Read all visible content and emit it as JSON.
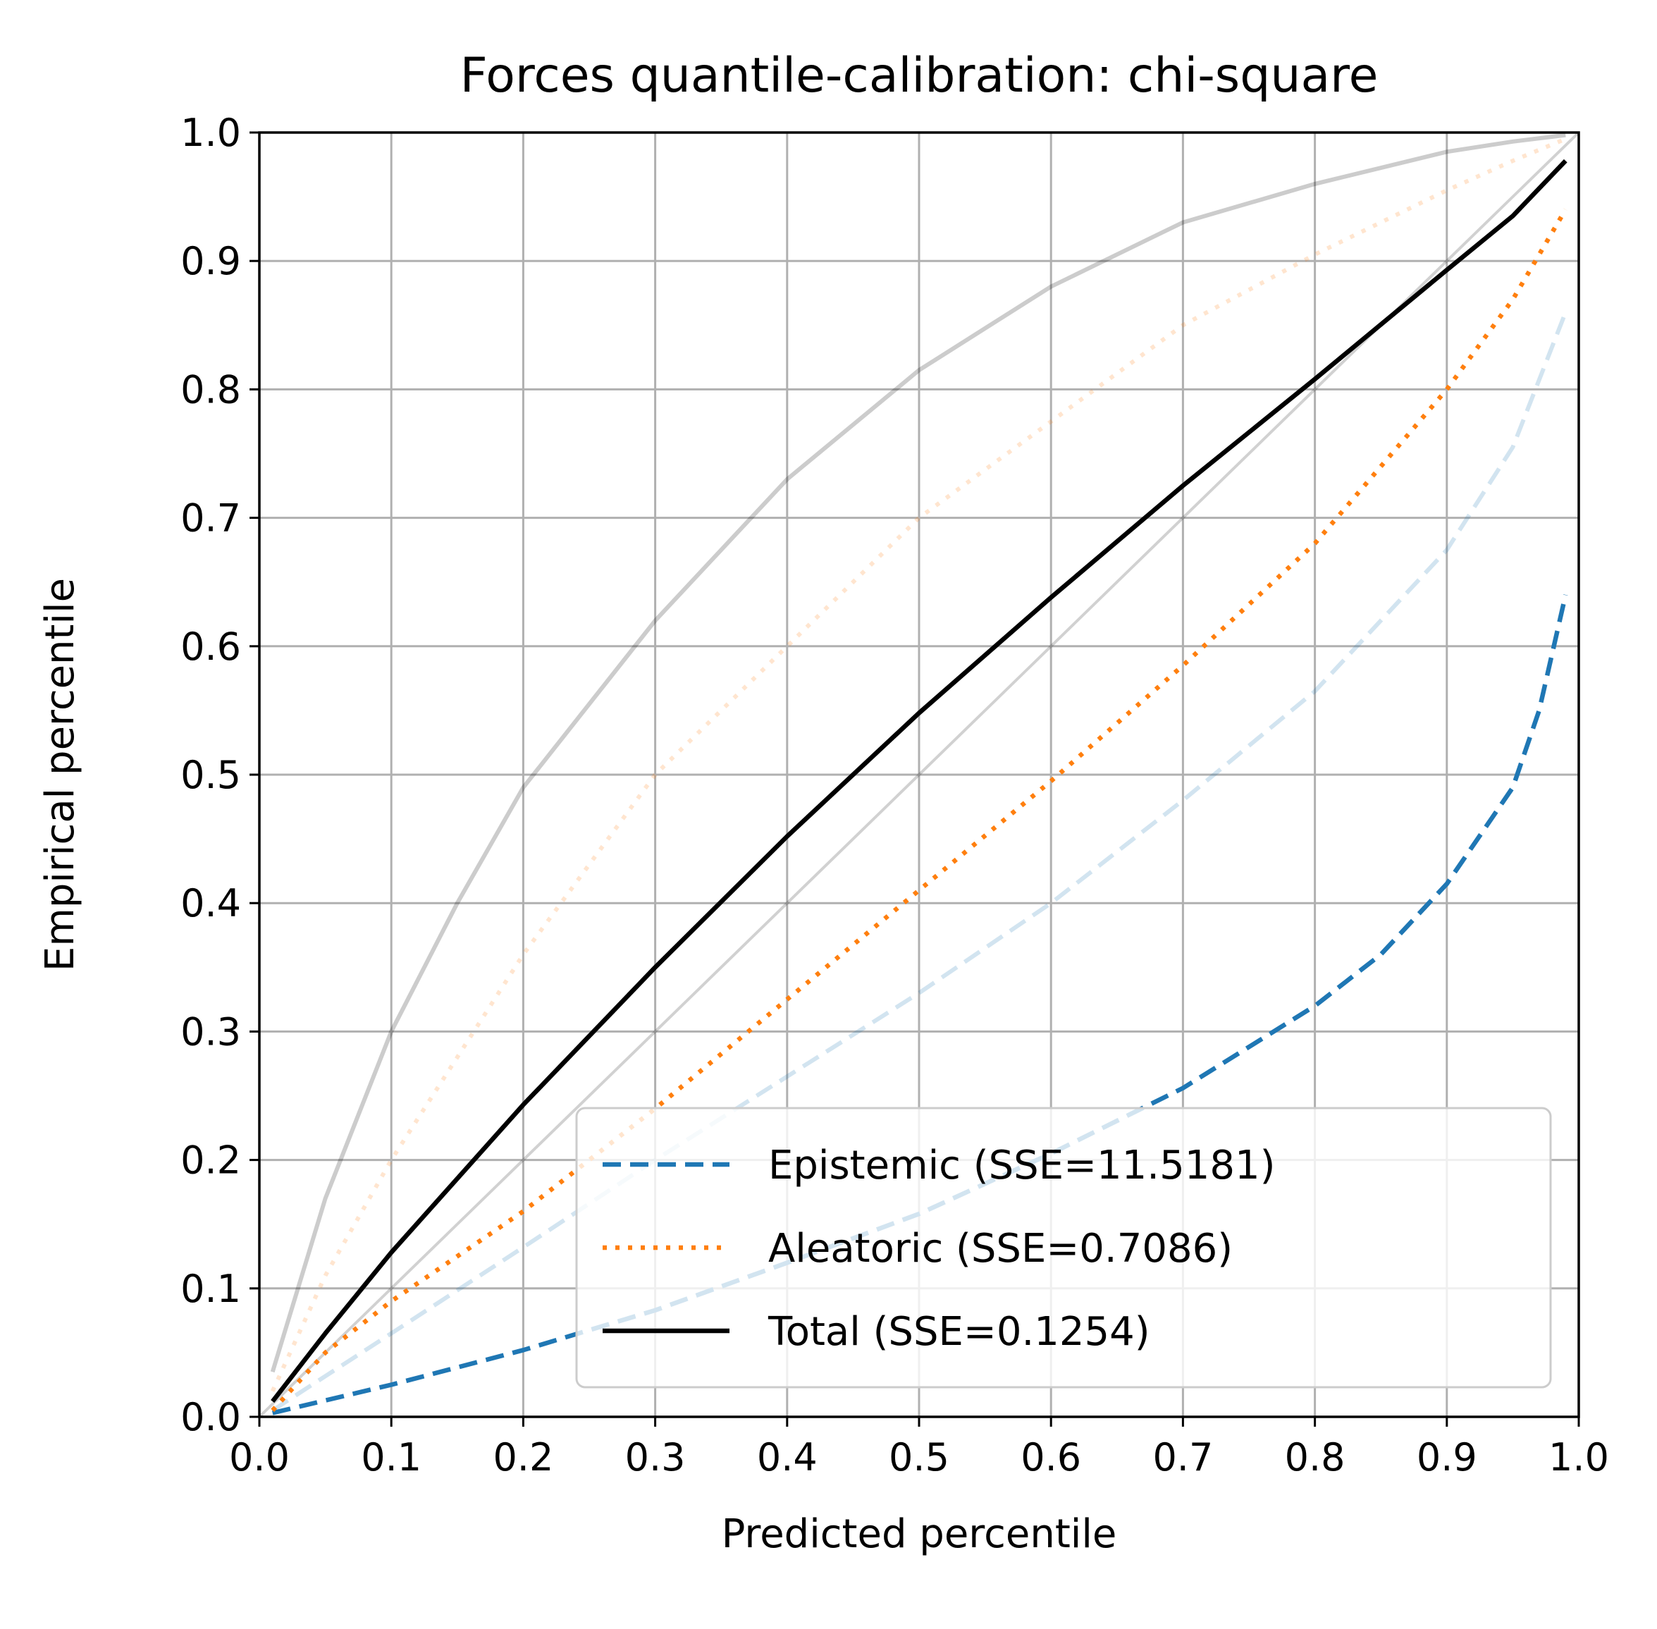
{
  "chart_data": {
    "type": "line",
    "title": "Forces quantile-calibration: chi-square",
    "xlabel": "Predicted percentile",
    "ylabel": "Empirical percentile",
    "xlim": [
      0,
      1
    ],
    "ylim": [
      0,
      1
    ],
    "xticks": [
      "0.0",
      "0.1",
      "0.2",
      "0.3",
      "0.4",
      "0.5",
      "0.6",
      "0.7",
      "0.8",
      "0.9",
      "1.0"
    ],
    "yticks": [
      "0.0",
      "0.1",
      "0.2",
      "0.3",
      "0.4",
      "0.5",
      "0.6",
      "0.7",
      "0.8",
      "0.9",
      "1.0"
    ],
    "grid": true,
    "legend_position": "lower-right",
    "series": [
      {
        "name": "Epistemic (SSE=11.5181)",
        "color": "#1f77b4",
        "style": "dashed",
        "x": [
          0.01,
          0.1,
          0.2,
          0.3,
          0.4,
          0.5,
          0.6,
          0.7,
          0.8,
          0.85,
          0.9,
          0.95,
          0.97,
          0.99
        ],
        "y": [
          0.003,
          0.025,
          0.052,
          0.083,
          0.12,
          0.158,
          0.205,
          0.256,
          0.32,
          0.36,
          0.415,
          0.49,
          0.55,
          0.64
        ]
      },
      {
        "name": "Aleatoric (SSE=0.7086)",
        "color": "#ff7f0e",
        "style": "dotted",
        "x": [
          0.01,
          0.05,
          0.1,
          0.2,
          0.3,
          0.4,
          0.5,
          0.6,
          0.7,
          0.8,
          0.9,
          0.95,
          0.99
        ],
        "y": [
          0.005,
          0.05,
          0.09,
          0.16,
          0.24,
          0.325,
          0.41,
          0.495,
          0.585,
          0.68,
          0.8,
          0.87,
          0.94
        ]
      },
      {
        "name": "Total (SSE=0.1254)",
        "color": "#000000",
        "style": "solid",
        "x": [
          0.01,
          0.05,
          0.1,
          0.2,
          0.3,
          0.4,
          0.5,
          0.6,
          0.7,
          0.8,
          0.9,
          0.95,
          0.99
        ],
        "y": [
          0.012,
          0.065,
          0.128,
          0.243,
          0.35,
          0.452,
          0.548,
          0.638,
          0.725,
          0.808,
          0.893,
          0.935,
          0.978
        ]
      }
    ],
    "reference_lines": [
      {
        "color": "#1f77b4",
        "style": "dashed",
        "opacity": 0.2,
        "x": [
          0.01,
          0.1,
          0.2,
          0.3,
          0.4,
          0.5,
          0.6,
          0.7,
          0.8,
          0.9,
          0.95,
          0.99
        ],
        "y": [
          0.005,
          0.065,
          0.132,
          0.2,
          0.265,
          0.33,
          0.4,
          0.48,
          0.565,
          0.675,
          0.755,
          0.86
        ]
      },
      {
        "color": "#ff7f0e",
        "style": "dotted",
        "opacity": 0.2,
        "x": [
          0.01,
          0.05,
          0.1,
          0.2,
          0.3,
          0.4,
          0.5,
          0.6,
          0.7,
          0.8,
          0.9,
          0.95,
          0.99
        ],
        "y": [
          0.02,
          0.11,
          0.2,
          0.36,
          0.5,
          0.6,
          0.7,
          0.775,
          0.85,
          0.905,
          0.955,
          0.978,
          0.995
        ]
      },
      {
        "color": "#000000",
        "style": "solid",
        "opacity": 0.2,
        "x": [
          0.01,
          0.05,
          0.1,
          0.15,
          0.2,
          0.3,
          0.4,
          0.5,
          0.6,
          0.7,
          0.8,
          0.9,
          0.95,
          0.99
        ],
        "y": [
          0.035,
          0.17,
          0.3,
          0.4,
          0.49,
          0.62,
          0.73,
          0.815,
          0.88,
          0.93,
          0.96,
          0.985,
          0.993,
          0.998
        ]
      },
      {
        "color": "#000000",
        "style": "solid",
        "opacity": 0.18,
        "x": [
          0,
          1
        ],
        "y": [
          0,
          1
        ]
      }
    ]
  }
}
